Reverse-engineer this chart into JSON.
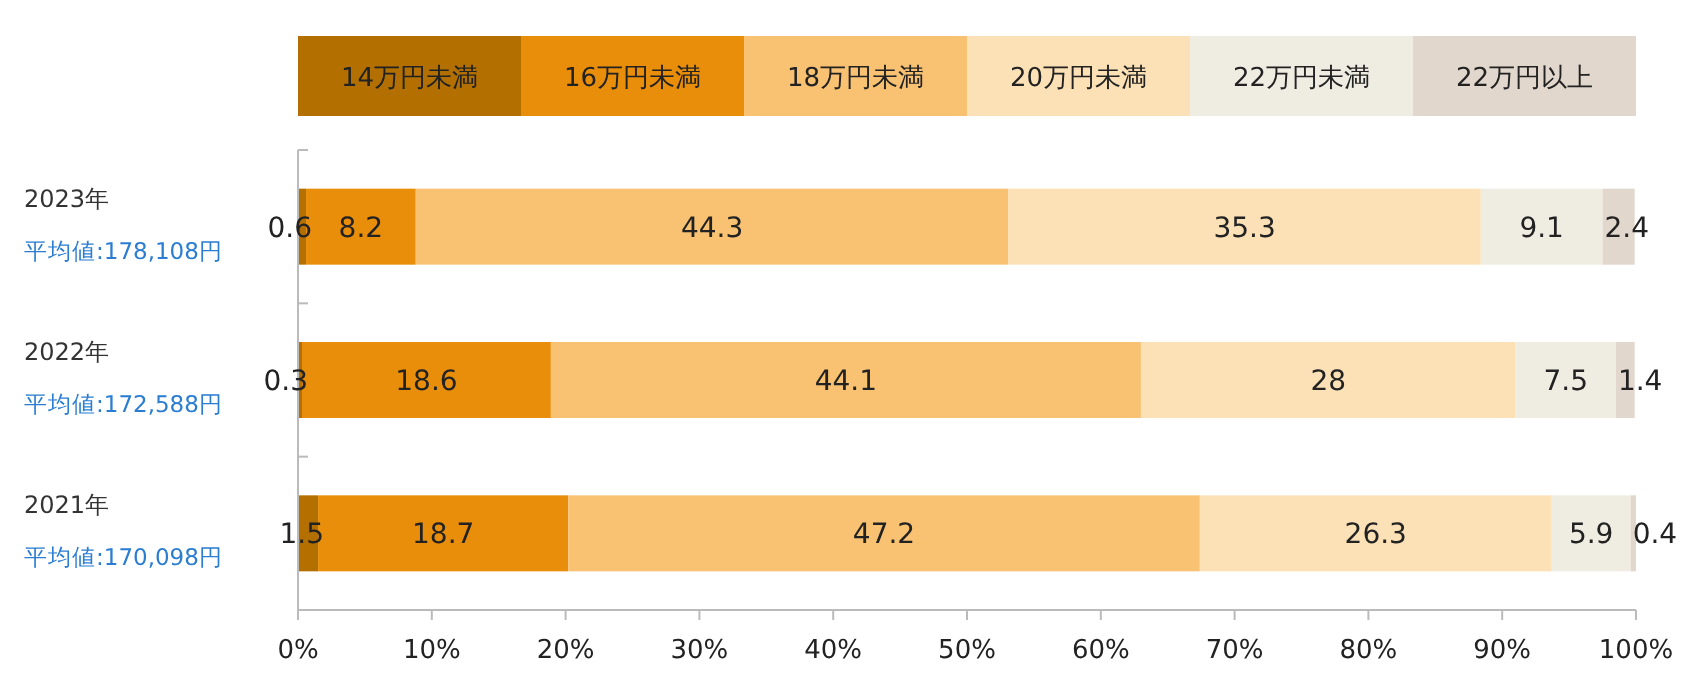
{
  "chart_data": {
    "type": "bar",
    "orientation": "horizontal",
    "stacked": true,
    "data_labels": true,
    "legend": "top",
    "grid": false,
    "categories": [
      "2023年",
      "2022年",
      "2021年"
    ],
    "annotations": [
      "平均値:178,108円",
      "平均値:172,588円",
      "平均値:170,098円"
    ],
    "series": [
      {
        "name": "14万円未満",
        "color": "#b37000",
        "values": [
          0.6,
          0.3,
          1.5
        ]
      },
      {
        "name": "16万円未満",
        "color": "#e88e0b",
        "values": [
          8.2,
          18.6,
          18.7
        ]
      },
      {
        "name": "18万円未満",
        "color": "#f8c272",
        "values": [
          44.3,
          44.1,
          47.2
        ]
      },
      {
        "name": "20万円未満",
        "color": "#fce1b6",
        "values": [
          35.3,
          28,
          26.3
        ]
      },
      {
        "name": "22万円未満",
        "color": "#efece2",
        "values": [
          9.1,
          7.5,
          5.9
        ]
      },
      {
        "name": "22万円以上",
        "color": "#e2d7cc",
        "values": [
          2.4,
          1.4,
          0.4
        ]
      }
    ],
    "xlim": [
      0,
      100
    ],
    "xticks": [
      {
        "value": 0,
        "label": "0%"
      },
      {
        "value": 10,
        "label": "10%"
      },
      {
        "value": 20,
        "label": "20%"
      },
      {
        "value": 30,
        "label": "30%"
      },
      {
        "value": 40,
        "label": "40%"
      },
      {
        "value": 50,
        "label": "50%"
      },
      {
        "value": 60,
        "label": "60%"
      },
      {
        "value": 70,
        "label": "70%"
      },
      {
        "value": 80,
        "label": "80%"
      },
      {
        "value": 90,
        "label": "90%"
      },
      {
        "value": 100,
        "label": "100%"
      }
    ]
  }
}
